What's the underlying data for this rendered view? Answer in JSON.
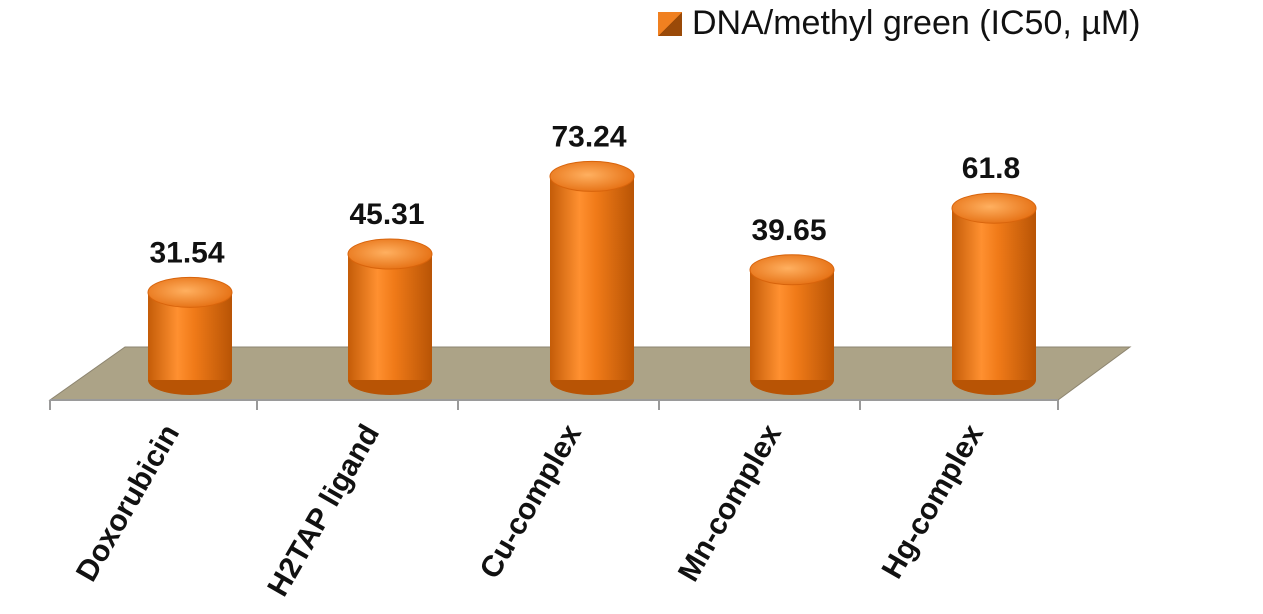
{
  "chart_data": {
    "type": "bar",
    "style": "3d-cylinder",
    "categories": [
      "Doxorubicin",
      "H2TAP ligand",
      "Cu-complex",
      "Mn-complex",
      "Hg-complex"
    ],
    "series": [
      {
        "name": "DNA/methyl green (IC50, µM)",
        "values": [
          31.54,
          45.31,
          73.24,
          39.65,
          61.8
        ]
      }
    ],
    "value_labels": [
      "31.54",
      "45.31",
      "73.24",
      "39.65",
      "61.8"
    ],
    "legend_position": "top-right",
    "grid": false,
    "colors": {
      "bar": "#e8761a",
      "bar_dark": "#b85405",
      "bar_light": "#ff9f45",
      "floor": "#aca387",
      "floor_edge": "#7e7660",
      "axis": "#999999",
      "text": "#111111"
    }
  }
}
